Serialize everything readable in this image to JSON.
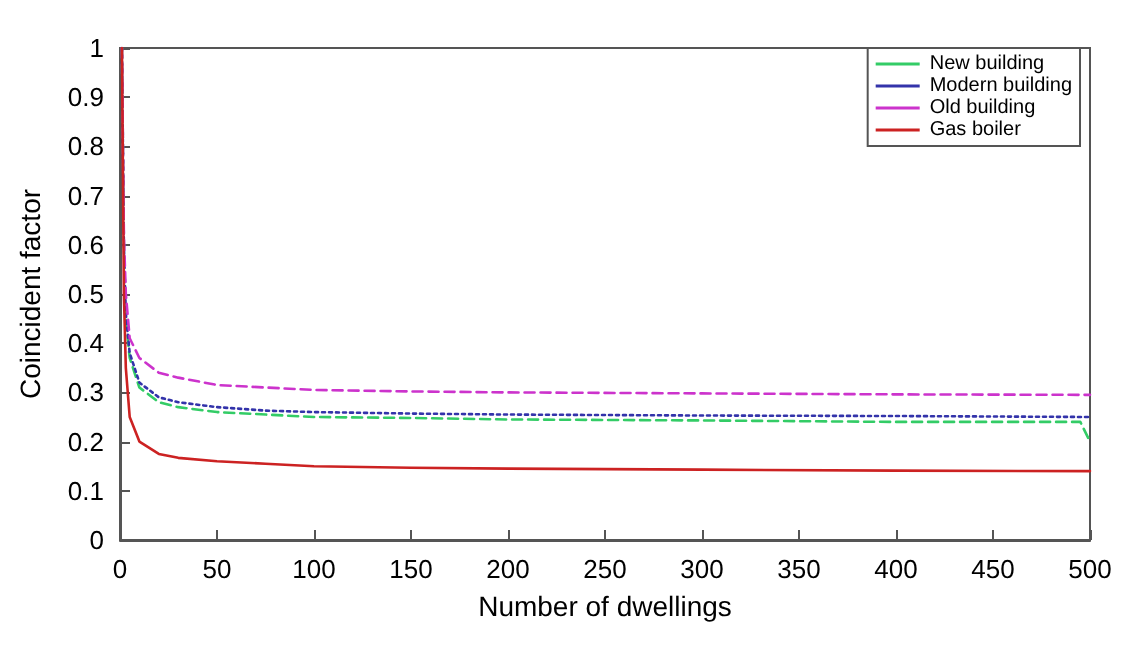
{
  "chart_data": {
    "type": "line",
    "xlabel": "Number of dwellings",
    "ylabel": "Coincident factor",
    "xlim": [
      0,
      500
    ],
    "xticks": [
      0,
      50,
      100,
      150,
      200,
      250,
      300,
      350,
      400,
      450,
      500
    ],
    "ylim": [
      0,
      1
    ],
    "yticks": [
      0,
      0.1,
      0.2,
      0.3,
      0.4,
      0.5,
      0.6,
      0.7,
      0.8,
      0.9,
      1
    ],
    "grid": false,
    "legend": "top right",
    "marker": "none",
    "series": [
      {
        "name": "New building",
        "color": "#33cc66",
        "line_style": "dashed",
        "x": [
          1,
          2,
          3,
          5,
          10,
          20,
          30,
          50,
          75,
          100,
          150,
          200,
          300,
          400,
          495,
          500
        ],
        "values": [
          1,
          0.6,
          0.45,
          0.37,
          0.31,
          0.28,
          0.27,
          0.26,
          0.255,
          0.25,
          0.248,
          0.245,
          0.243,
          0.24,
          0.24,
          0.2
        ]
      },
      {
        "name": "Modern building",
        "color": "#3333aa",
        "line_style": "dotted",
        "x": [
          1,
          2,
          3,
          5,
          10,
          20,
          30,
          50,
          75,
          100,
          150,
          200,
          300,
          400,
          500
        ],
        "values": [
          1,
          0.6,
          0.46,
          0.38,
          0.32,
          0.29,
          0.28,
          0.27,
          0.263,
          0.26,
          0.257,
          0.255,
          0.253,
          0.252,
          0.25
        ]
      },
      {
        "name": "Old building",
        "color": "#cc33cc",
        "line_style": "dashed",
        "x": [
          1,
          2,
          3,
          5,
          10,
          20,
          30,
          50,
          75,
          100,
          150,
          200,
          300,
          400,
          500
        ],
        "values": [
          1,
          0.62,
          0.5,
          0.41,
          0.37,
          0.34,
          0.33,
          0.315,
          0.31,
          0.305,
          0.302,
          0.3,
          0.298,
          0.296,
          0.295
        ]
      },
      {
        "name": "Gas boiler",
        "color": "#cc2222",
        "line_style": "solid",
        "x": [
          1,
          2,
          3,
          5,
          10,
          20,
          30,
          50,
          75,
          100,
          150,
          200,
          300,
          400,
          500
        ],
        "values": [
          1,
          0.5,
          0.35,
          0.25,
          0.2,
          0.175,
          0.167,
          0.16,
          0.155,
          0.15,
          0.147,
          0.145,
          0.143,
          0.141,
          0.14
        ]
      }
    ]
  }
}
